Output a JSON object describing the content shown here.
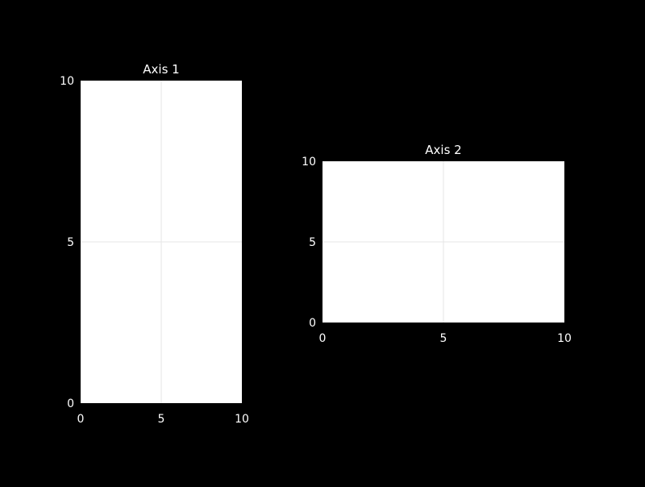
{
  "colors": {
    "background": "#000000",
    "plot_background": "#ffffff",
    "grid": "#e6e6e6",
    "text": "#ffffff"
  },
  "chart_data": [
    {
      "type": "scatter",
      "title": "Axis 1",
      "xlabel": "",
      "ylabel": "",
      "xlim": [
        0,
        10
      ],
      "ylim": [
        0,
        10
      ],
      "xticks": [
        "0",
        "5",
        "10"
      ],
      "yticks": [
        "0",
        "5",
        "10"
      ],
      "grid": true,
      "series": []
    },
    {
      "type": "scatter",
      "title": "Axis 2",
      "xlabel": "",
      "ylabel": "",
      "xlim": [
        0,
        10
      ],
      "ylim": [
        0,
        10
      ],
      "xticks": [
        "0",
        "5",
        "10"
      ],
      "yticks": [
        "0",
        "5",
        "10"
      ],
      "grid": true,
      "series": []
    }
  ]
}
